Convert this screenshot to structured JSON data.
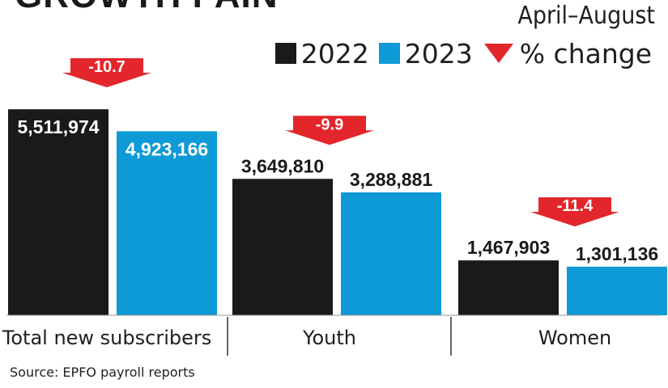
{
  "header": {
    "title_partial": "GROWTH PAIN",
    "period": "April–August"
  },
  "legend": {
    "items": [
      {
        "label": "2022",
        "color": "#1a1a1a"
      },
      {
        "label": "2023",
        "color": "#0e9ad7"
      }
    ],
    "change_label": "% change",
    "change_color": "#e3262b",
    "change_icon": "down-arrow-icon"
  },
  "source": "Source: EPFO payroll reports",
  "chart_data": {
    "type": "bar",
    "categories": [
      "Total new subscribers",
      "Youth",
      "Women"
    ],
    "series": [
      {
        "name": "2022",
        "values": [
          5511974,
          3649810,
          1467903
        ],
        "labels": [
          "5,511,974",
          "3,649,810",
          "1,467,903"
        ]
      },
      {
        "name": "2023",
        "values": [
          4923166,
          3288881,
          1301136
        ],
        "labels": [
          "4,923,166",
          "3,288,881",
          "1,301,136"
        ]
      }
    ],
    "pct_change": [
      -10.7,
      -9.9,
      -11.4
    ],
    "pct_change_labels": [
      "-10.7",
      "-9.9",
      "-11.4"
    ],
    "colors": {
      "2022": "#1a1a1a",
      "2023": "#0e9ad7",
      "change": "#e3262b"
    },
    "ylim": [
      0,
      6100000
    ],
    "grid": false,
    "legend_position": "top-right"
  }
}
